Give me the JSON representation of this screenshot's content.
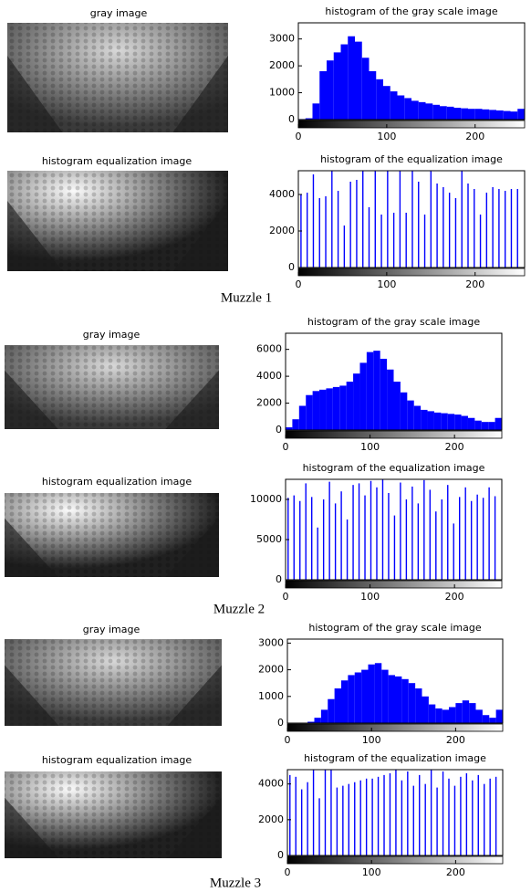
{
  "figures": [
    {
      "caption": "Muzzle 1",
      "image_titles": [
        "gray image",
        "histogram equalization image"
      ]
    },
    {
      "caption": "Muzzle 2",
      "image_titles": [
        "gray image",
        "histogram equalization image"
      ]
    },
    {
      "caption": "Muzzle 3",
      "image_titles": [
        "gray image",
        "histogram equalization image"
      ]
    }
  ],
  "chart_data": [
    {
      "type": "histogram",
      "title": "histogram of the gray scale image",
      "color": "#0000ff",
      "bins": [
        0,
        8,
        16,
        24,
        32,
        40,
        48,
        56,
        64,
        72,
        80,
        88,
        96,
        104,
        112,
        120,
        128,
        136,
        144,
        152,
        160,
        168,
        176,
        184,
        192,
        200,
        208,
        216,
        224,
        232,
        240,
        248,
        256
      ],
      "values": [
        20,
        50,
        600,
        1800,
        2200,
        2500,
        2800,
        3100,
        2900,
        2300,
        1800,
        1500,
        1250,
        1050,
        900,
        800,
        700,
        650,
        600,
        550,
        500,
        480,
        440,
        420,
        400,
        400,
        380,
        360,
        340,
        320,
        300,
        400
      ],
      "xlim": [
        0,
        256
      ],
      "xticks": [
        0,
        100,
        200
      ],
      "ylim": [
        0,
        3600
      ],
      "yticks": [
        0,
        1000,
        2000,
        3000
      ]
    },
    {
      "type": "stem",
      "title": "histogram of the equalization image",
      "color": "#0000ff",
      "x": [
        3,
        10,
        17,
        24,
        31,
        38,
        45,
        52,
        59,
        66,
        73,
        80,
        87,
        94,
        101,
        108,
        115,
        122,
        129,
        136,
        143,
        150,
        157,
        164,
        171,
        178,
        185,
        192,
        199,
        206,
        213,
        220,
        227,
        234,
        241,
        248
      ],
      "values": [
        4000,
        4100,
        5100,
        3800,
        3900,
        5300,
        4200,
        2300,
        4700,
        4800,
        5300,
        3300,
        5300,
        2900,
        5300,
        3000,
        5300,
        3000,
        5300,
        4700,
        2900,
        5300,
        4600,
        4400,
        4100,
        3800,
        5300,
        4600,
        4300,
        2900,
        4100,
        4400,
        4300,
        4200,
        4300,
        4300
      ],
      "xlim": [
        0,
        256
      ],
      "xticks": [
        0,
        100,
        200
      ],
      "ylim": [
        0,
        5300
      ],
      "yticks": [
        0,
        2000,
        4000
      ]
    },
    {
      "type": "histogram",
      "title": "histogram of the gray scale image",
      "color": "#0000ff",
      "bins": [
        0,
        8,
        16,
        24,
        32,
        40,
        48,
        56,
        64,
        72,
        80,
        88,
        96,
        104,
        112,
        120,
        128,
        136,
        144,
        152,
        160,
        168,
        176,
        184,
        192,
        200,
        208,
        216,
        224,
        232,
        240,
        248,
        256
      ],
      "values": [
        200,
        800,
        1800,
        2600,
        2900,
        3000,
        3100,
        3200,
        3300,
        3600,
        4200,
        5000,
        5800,
        5900,
        5300,
        4500,
        3600,
        2800,
        2200,
        1800,
        1500,
        1400,
        1300,
        1250,
        1200,
        1150,
        1050,
        900,
        700,
        600,
        600,
        900
      ],
      "xlim": [
        0,
        256
      ],
      "xticks": [
        0,
        100,
        200
      ],
      "ylim": [
        0,
        7200
      ],
      "yticks": [
        0,
        2000,
        4000,
        6000
      ]
    },
    {
      "type": "stem",
      "title": "histogram of the equalization image",
      "color": "#0000ff",
      "x": [
        3,
        10,
        17,
        24,
        31,
        38,
        45,
        52,
        59,
        66,
        73,
        80,
        87,
        94,
        101,
        108,
        115,
        122,
        129,
        136,
        143,
        150,
        157,
        164,
        171,
        178,
        185,
        192,
        199,
        206,
        213,
        220,
        227,
        234,
        241,
        248
      ],
      "values": [
        10200,
        10500,
        9800,
        12000,
        10300,
        6500,
        10000,
        12200,
        9500,
        11000,
        7500,
        11800,
        12000,
        10500,
        12300,
        11500,
        12500,
        10800,
        8000,
        12100,
        10000,
        11600,
        9500,
        12400,
        11200,
        8500,
        10000,
        11800,
        7000,
        10300,
        11500,
        9800,
        10600,
        10200,
        11500,
        10400
      ],
      "xlim": [
        0,
        256
      ],
      "xticks": [
        0,
        100,
        200
      ],
      "ylim": [
        0,
        12500
      ],
      "yticks": [
        0,
        5000,
        10000
      ]
    },
    {
      "type": "histogram",
      "title": "histogram of the gray scale image",
      "color": "#0000ff",
      "bins": [
        0,
        8,
        16,
        24,
        32,
        40,
        48,
        56,
        64,
        72,
        80,
        88,
        96,
        104,
        112,
        120,
        128,
        136,
        144,
        152,
        160,
        168,
        176,
        184,
        192,
        200,
        208,
        216,
        224,
        232,
        240,
        248,
        256
      ],
      "values": [
        0,
        0,
        0,
        50,
        200,
        500,
        900,
        1300,
        1600,
        1800,
        1900,
        2000,
        2200,
        2250,
        2000,
        1800,
        1750,
        1650,
        1500,
        1300,
        1000,
        700,
        550,
        500,
        600,
        750,
        850,
        750,
        500,
        300,
        200,
        500
      ],
      "xlim": [
        0,
        256
      ],
      "xticks": [
        0,
        100,
        200
      ],
      "ylim": [
        0,
        3150
      ],
      "yticks": [
        0,
        1000,
        2000,
        3000
      ]
    },
    {
      "type": "stem",
      "title": "histogram of the equalization image",
      "color": "#0000ff",
      "x": [
        3,
        10,
        17,
        24,
        31,
        38,
        45,
        52,
        59,
        66,
        73,
        80,
        87,
        94,
        101,
        108,
        115,
        122,
        129,
        136,
        143,
        150,
        157,
        164,
        171,
        178,
        185,
        192,
        199,
        206,
        213,
        220,
        227,
        234,
        241,
        248
      ],
      "values": [
        4500,
        4400,
        3700,
        4100,
        4800,
        3200,
        4800,
        4800,
        3800,
        3900,
        4000,
        4100,
        4200,
        4300,
        4300,
        4400,
        4500,
        4600,
        4800,
        4200,
        4700,
        3900,
        4500,
        4000,
        4800,
        3800,
        4700,
        4300,
        3900,
        4400,
        4600,
        4200,
        4500,
        4000,
        4300,
        4400
      ],
      "xlim": [
        0,
        256
      ],
      "xticks": [
        0,
        100,
        200
      ],
      "ylim": [
        0,
        4800
      ],
      "yticks": [
        0,
        2000,
        4000
      ]
    }
  ]
}
